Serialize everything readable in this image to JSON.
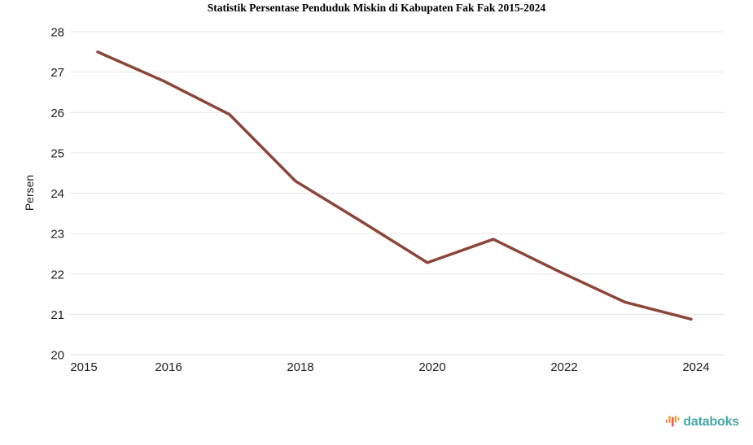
{
  "chart_data": {
    "type": "line",
    "title": "Statistik Persentase Penduduk Miskin di Kabupaten Fak Fak 2015-2024",
    "x": [
      2015,
      2016,
      2017,
      2018,
      2019,
      2020,
      2021,
      2022,
      2023,
      2024
    ],
    "values": [
      27.5,
      26.78,
      25.95,
      24.3,
      23.3,
      22.28,
      22.86,
      22.06,
      21.3,
      20.88
    ],
    "xlabel": "",
    "ylabel": "Persen",
    "ylim": [
      20,
      28
    ],
    "yticks": [
      20,
      21,
      22,
      23,
      24,
      25,
      26,
      27,
      28
    ],
    "xticks": [
      2015,
      2016,
      2018,
      2020,
      2022,
      2024
    ],
    "grid": true,
    "legend_position": "none",
    "line_color": "#8c4539",
    "grid_color": "#e6e6e6",
    "axis_line_color": "#e0e0e0",
    "label_color": "#212121"
  },
  "branding": {
    "label": "databoks",
    "text_color": "#44a8a4",
    "icon": "equalizer-bars-icon",
    "icon_colors": [
      "#ef7b62",
      "#f5a33b",
      "#ee5a4f",
      "#f5a33b",
      "#f09a3f"
    ]
  }
}
